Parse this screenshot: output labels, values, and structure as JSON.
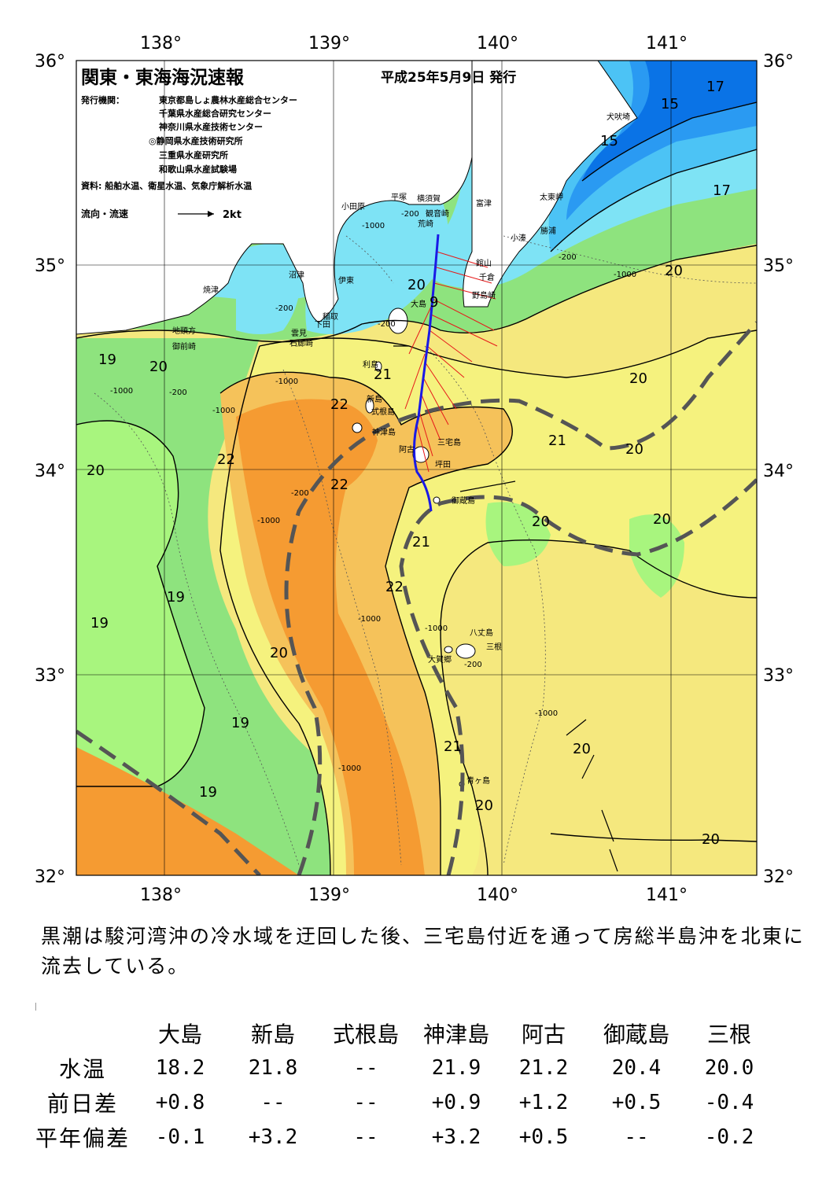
{
  "map": {
    "title": "関東・東海海況速報",
    "issue_date": "平成25年5月9日 発行",
    "issuers_label": "発行機関：",
    "issuers": [
      "東京都島しょ農林水産総合センター",
      "千葉県水産総合研究センター",
      "神奈川県水産技術センター",
      "◎静岡県水産技術研究所",
      "三重県水産研究所",
      "和歌山県水産試験場"
    ],
    "source": "資料: 船舶水温、衛星水温、気象庁解析水温",
    "legend_flow": "流向・流速",
    "legend_speed": "2kt",
    "lon_labels": [
      "138°",
      "139°",
      "140°",
      "141°"
    ],
    "lat_labels": [
      "36°",
      "35°",
      "34°",
      "33°",
      "32°"
    ],
    "place_names": {
      "inubozaki": "犬吠埼",
      "taitomisaki": "太東岬",
      "katsuura": "勝浦",
      "kominato": "小湊",
      "futtsu": "富津",
      "yokosuka": "横須賀",
      "kannonzaki": "観音崎",
      "hiratsuka": "平塚",
      "odawara": "小田原",
      "arasaki": "荒崎",
      "tateyama": "館山",
      "chikura": "千倉",
      "nojimazaki": "野島崎",
      "oshima": "大島",
      "toshima": "利島",
      "niijima": "新島",
      "shikinejima": "式根島",
      "kozushima": "神津島",
      "miyakejima": "三宅島",
      "ako": "阿古",
      "tsuboda": "坪田",
      "mikurajima": "御蔵島",
      "hachijojima": "八丈島",
      "mitsune": "三根",
      "okago": "大賀郷",
      "aogashima": "青ヶ島",
      "numazu": "沼津",
      "yaizu": "焼津",
      "ito": "伊東",
      "inatori": "稲取",
      "shimoda": "下田",
      "kumomi": "雲見",
      "irozaki": "石廊崎",
      "jitokata": "地頭方",
      "omaezaki": "御前崎"
    },
    "isotherm_labels": [
      "15",
      "15",
      "17",
      "17",
      "20",
      "20",
      "20",
      "20",
      "20",
      "20",
      "20",
      "20",
      "20",
      "20",
      "20",
      "20",
      "21",
      "21",
      "21",
      "21",
      "22",
      "22",
      "22",
      "22",
      "19",
      "19",
      "19",
      "19",
      "19",
      "9"
    ],
    "depth_labels": [
      "-200",
      "-200",
      "-200",
      "-200",
      "-200",
      "-1000",
      "-1000",
      "-1000",
      "-1000",
      "-1000",
      "-1000",
      "-1000",
      "-1000",
      "-1000",
      "-1000",
      "-200",
      "-200"
    ],
    "colors": {
      "t15": "#0a73e6",
      "t16": "#2a9af2",
      "t17": "#4cc3f5",
      "t18": "#7ee3f5",
      "t19": "#a8f57e",
      "t20": "#8ee37e",
      "t21": "#f5f27e",
      "t22": "#f5c25a",
      "t23": "#f59b32",
      "kuroshio": "#555555",
      "track": "#1a1ae6",
      "arrows": "#e61a1a"
    }
  },
  "description": "黒潮は駿河湾沖の冷水域を迂回した後、三宅島付近を通って房総半島沖を北東に流去している。",
  "table": {
    "headers": [
      "大島",
      "新島",
      "式根島",
      "神津島",
      "阿古",
      "御蔵島",
      "三根"
    ],
    "rows": [
      {
        "label": "水温",
        "values": [
          "18.2",
          "21.8",
          "--",
          "21.9",
          "21.2",
          "20.4",
          "20.0"
        ]
      },
      {
        "label": "前日差",
        "values": [
          "+0.8",
          "--",
          "--",
          "+0.9",
          "+1.2",
          "+0.5",
          "-0.4"
        ]
      },
      {
        "label": "平年偏差",
        "values": [
          "-0.1",
          "+3.2",
          "--",
          "+3.2",
          "+0.5",
          "--",
          "-0.2"
        ]
      }
    ]
  }
}
